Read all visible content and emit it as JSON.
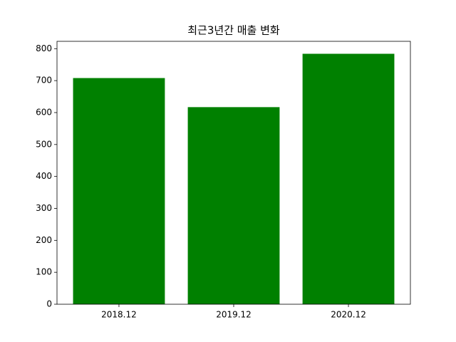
{
  "chart_data": {
    "type": "bar",
    "title": "최근3년간 매출 변화",
    "categories": [
      "2018.12",
      "2019.12",
      "2020.12"
    ],
    "values": [
      708,
      617,
      784
    ],
    "color": "#008000",
    "ylim": [
      0,
      823
    ],
    "yticks": [
      0,
      100,
      200,
      300,
      400,
      500,
      600,
      700,
      800
    ],
    "grid": false
  }
}
